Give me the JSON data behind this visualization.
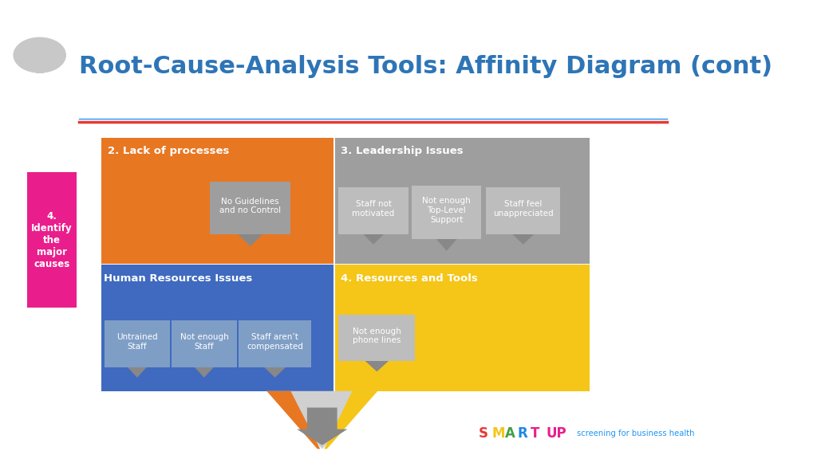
{
  "title": "Root-Cause-Analysis Tools: Affinity Diagram (cont)",
  "title_color": "#2e75b6",
  "title_fontsize": 22,
  "bg_color": "#ffffff",
  "sidebar_label": "4.\nIdentify\nthe\nmajor\ncauses",
  "sidebar_color": "#e91e8c",
  "sidebar_text_color": "#ffffff",
  "red_line_color": "#e53935",
  "blue_line_color": "#2196f3",
  "orange_color": "#e87722",
  "blue_section_color": "#3f6abf",
  "blue_card_color": "#7f9ec6",
  "gray_section_color": "#9e9e9e",
  "gray_card_color": "#bdbdbd",
  "yellow_section_color": "#f5c518",
  "pencil_body_color": "#d0d0d0",
  "arrow_color": "#888888",
  "smart_colors": [
    "#e53935",
    "#f5c518",
    "#43a047",
    "#1e88e5",
    "#e91e8c"
  ],
  "smart_text": [
    "S",
    "M",
    "A",
    "R",
    "T"
  ],
  "up_color": "#e91e8c",
  "tagline_color": "#2196f3",
  "tagline": "screening for business health"
}
